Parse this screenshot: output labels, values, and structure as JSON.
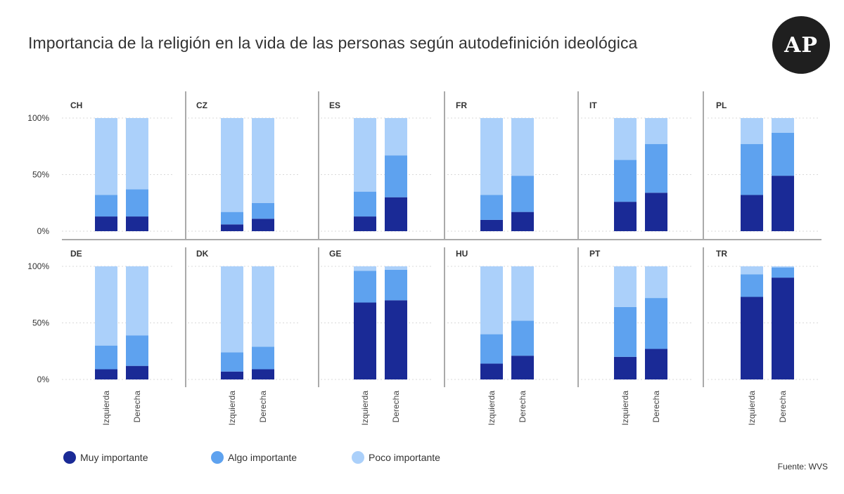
{
  "title": "Importancia de la religión en la vida de las personas según autodefinición ideológica",
  "logo_text": "AP",
  "source": "Fuente: WVS",
  "colors": {
    "muy": "#1a2a96",
    "algo": "#5ea2ef",
    "poco": "#abd0fa",
    "grid": "#d9d9d9",
    "divider": "#555555"
  },
  "legend": [
    {
      "label": "Muy importante",
      "color": "#1a2a96"
    },
    {
      "label": "Algo importante",
      "color": "#5ea2ef"
    },
    {
      "label": "Poco importante",
      "color": "#abd0fa"
    }
  ],
  "chart_data": {
    "type": "bar",
    "stacked": true,
    "title": "Importancia de la religión en la vida de las personas según autodefinición ideológica",
    "categories": [
      "Izquierda",
      "Derecha"
    ],
    "y_ticks": [
      "100%",
      "50%",
      "0%"
    ],
    "ylim": [
      0,
      100
    ],
    "series_names": [
      "Muy importante",
      "Algo importante",
      "Poco importante"
    ],
    "panels": [
      {
        "country": "CH",
        "values": {
          "Izquierda": [
            13,
            19,
            68
          ],
          "Derecha": [
            13,
            24,
            63
          ]
        }
      },
      {
        "country": "CZ",
        "values": {
          "Izquierda": [
            6,
            11,
            83
          ],
          "Derecha": [
            11,
            14,
            75
          ]
        }
      },
      {
        "country": "ES",
        "values": {
          "Izquierda": [
            13,
            22,
            65
          ],
          "Derecha": [
            30,
            37,
            33
          ]
        }
      },
      {
        "country": "FR",
        "values": {
          "Izquierda": [
            10,
            22,
            68
          ],
          "Derecha": [
            17,
            32,
            51
          ]
        }
      },
      {
        "country": "IT",
        "values": {
          "Izquierda": [
            26,
            37,
            37
          ],
          "Derecha": [
            34,
            43,
            23
          ]
        }
      },
      {
        "country": "PL",
        "values": {
          "Izquierda": [
            32,
            45,
            23
          ],
          "Derecha": [
            49,
            38,
            13
          ]
        }
      },
      {
        "country": "DE",
        "values": {
          "Izquierda": [
            9,
            21,
            70
          ],
          "Derecha": [
            12,
            27,
            61
          ]
        }
      },
      {
        "country": "DK",
        "values": {
          "Izquierda": [
            7,
            17,
            76
          ],
          "Derecha": [
            9,
            20,
            71
          ]
        }
      },
      {
        "country": "GE",
        "values": {
          "Izquierda": [
            68,
            28,
            4
          ],
          "Derecha": [
            70,
            27,
            3
          ]
        }
      },
      {
        "country": "HU",
        "values": {
          "Izquierda": [
            14,
            26,
            60
          ],
          "Derecha": [
            21,
            31,
            48
          ]
        }
      },
      {
        "country": "PT",
        "values": {
          "Izquierda": [
            20,
            44,
            36
          ],
          "Derecha": [
            27,
            45,
            28
          ]
        }
      },
      {
        "country": "TR",
        "values": {
          "Izquierda": [
            73,
            20,
            7
          ],
          "Derecha": [
            90,
            9,
            1
          ]
        }
      }
    ]
  }
}
